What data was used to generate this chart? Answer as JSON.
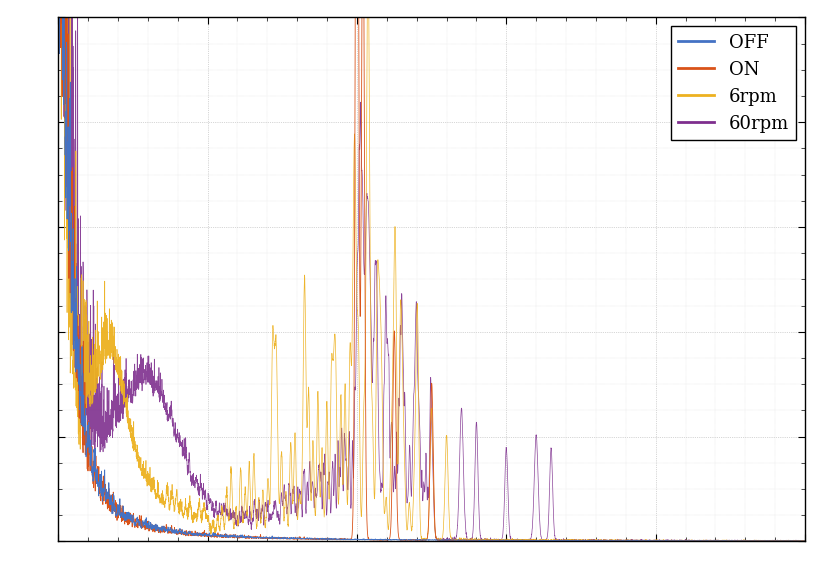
{
  "legend_labels": [
    "OFF",
    "ON",
    "6rpm",
    "60rpm"
  ],
  "colors": [
    "#4472C4",
    "#D95319",
    "#EDB120",
    "#7E2F8E"
  ],
  "background_color": "#ffffff",
  "xlim": [
    0,
    1000
  ],
  "ylim": [
    0,
    200
  ],
  "n_points": 5000,
  "seeds": [
    10,
    20,
    30,
    40
  ]
}
